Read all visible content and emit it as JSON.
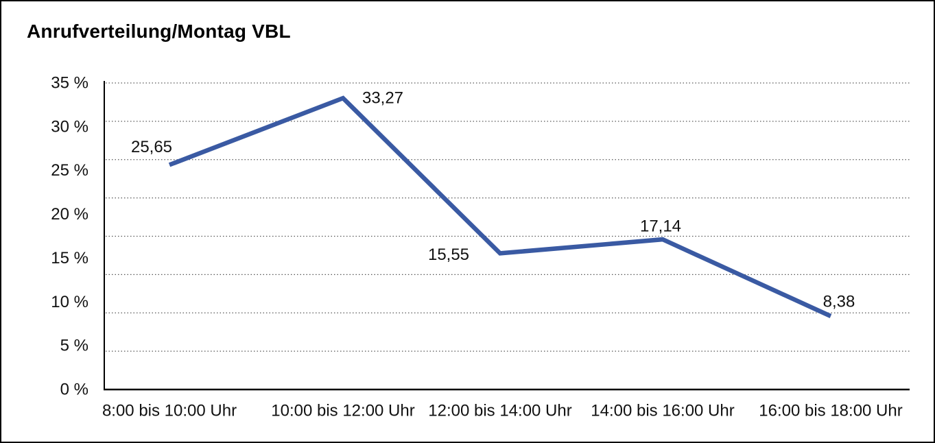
{
  "window": {
    "background_color": "#ffffff",
    "border_color": "#000000"
  },
  "chart_data": {
    "type": "line",
    "title": "Anrufverteilung/Montag VBL",
    "categories": [
      "8:00 bis 10:00 Uhr",
      "10:00 bis 12:00 Uhr",
      "12:00 bis 14:00 Uhr",
      "14:00 bis 16:00 Uhr",
      "16:00 bis 18:00 Uhr"
    ],
    "values": [
      25.65,
      33.27,
      15.55,
      17.14,
      8.38
    ],
    "point_labels": [
      "25,65",
      "33,27",
      "15,55",
      "17,14",
      "8,38"
    ],
    "y_tick_labels": [
      "35 %",
      "30 %",
      "25 %",
      "20 %",
      "15 %",
      "10 %",
      "5 %",
      "0 %"
    ],
    "y_tick_values": [
      35,
      30,
      25,
      20,
      15,
      10,
      5,
      0
    ],
    "ylim": [
      0,
      35
    ],
    "grid_divisions": 8,
    "grid_style": "dotted",
    "legend": "none",
    "xlabel": "",
    "ylabel": "",
    "line_color": "#3A5AA3",
    "grid_color": "#555555",
    "axis_color": "#000000",
    "text_color": "#111111"
  }
}
